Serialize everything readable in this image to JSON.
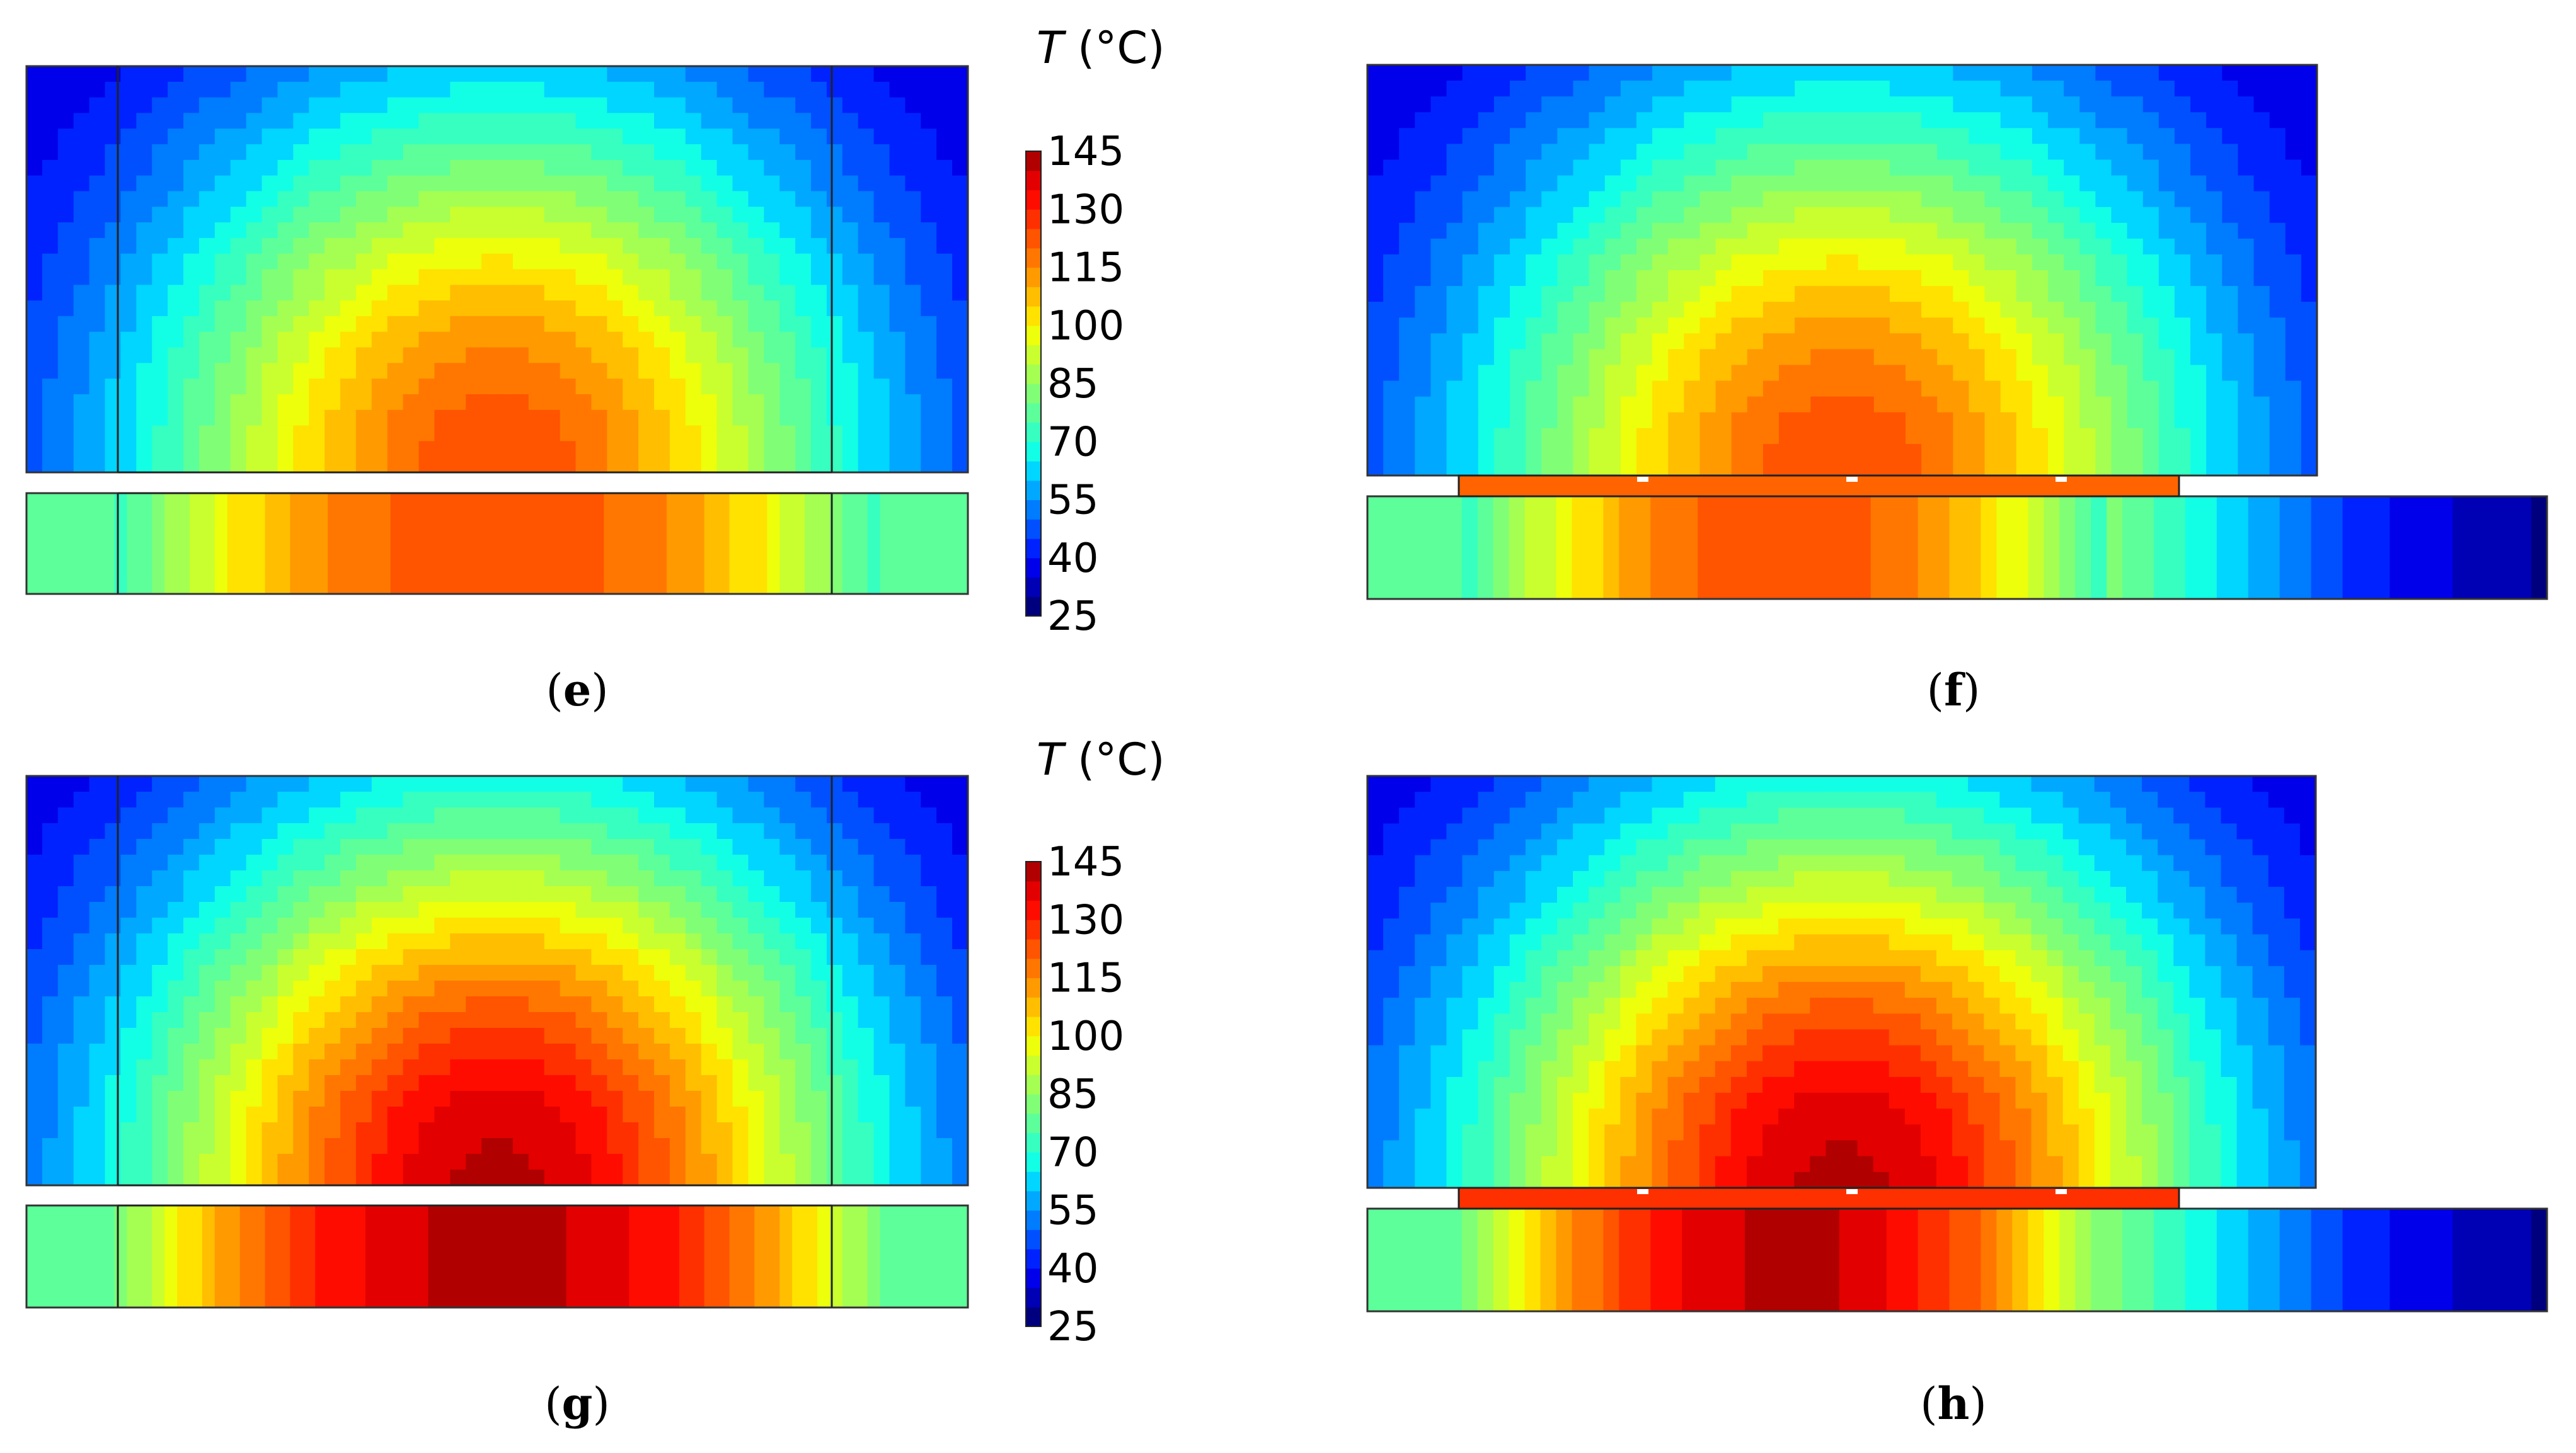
{
  "colorbar": {
    "title_var": "T",
    "title_unit": " (°C)",
    "ticks": [
      "145",
      "130",
      "115",
      "100",
      "85",
      "70",
      "55",
      "40",
      "25"
    ],
    "min": 25,
    "max": 145,
    "levels": 24,
    "colors": [
      "#00007f",
      "#0000b5",
      "#0000ea",
      "#0022ff",
      "#0050ff",
      "#007cff",
      "#00a8ff",
      "#00d6ff",
      "#12ffe5",
      "#36ffc0",
      "#5cff9a",
      "#80ff76",
      "#a4ff52",
      "#c9ff2e",
      "#edff0a",
      "#ffe200",
      "#ffbe00",
      "#ff9a00",
      "#ff7700",
      "#ff5400",
      "#ff3000",
      "#ff0c00",
      "#e30000",
      "#b00000"
    ]
  },
  "panels": [
    {
      "id": "e",
      "label": "e",
      "peak": 0.82,
      "edge": 0.45,
      "topEdge": 0.09,
      "bottomExtension": false
    },
    {
      "id": "f",
      "label": "f",
      "peak": 0.82,
      "edge": 0.45,
      "topEdge": 0.09,
      "bottomExtension": true
    },
    {
      "id": "g",
      "label": "g",
      "peak": 0.97,
      "edge": 0.45,
      "topEdge": 0.09,
      "bottomExtension": false
    },
    {
      "id": "h",
      "label": "h",
      "peak": 0.97,
      "edge": 0.45,
      "topEdge": 0.09,
      "bottomExtension": true
    }
  ]
}
